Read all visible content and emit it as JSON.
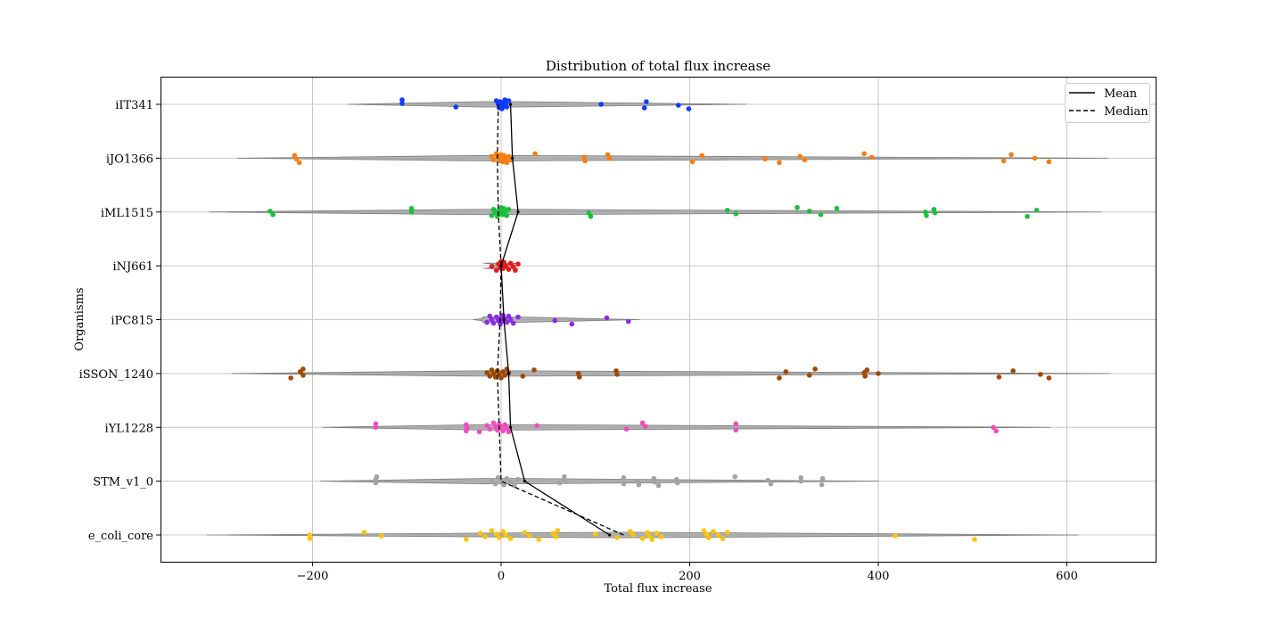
{
  "chart_data": {
    "type": "scatter",
    "title": "Distribution of total flux increase",
    "xlabel": "Total flux increase",
    "ylabel": "Organisms",
    "xlim": [
      -270,
      1780
    ],
    "x_ticks": [
      -200,
      0,
      200,
      400,
      600
    ],
    "x_tick_labels": [
      "−200",
      "0",
      "200",
      "400",
      "600"
    ],
    "grid": true,
    "legend_position": "top-right",
    "legend": [
      {
        "label": "Mean",
        "style": "solid"
      },
      {
        "label": "Median",
        "style": "dashed"
      }
    ],
    "categories": [
      "iIT341",
      "iJO1366",
      "iML1515",
      "iNJ661",
      "iPC815",
      "iSSON_1240",
      "iYL1228",
      "STM_v1_0",
      "e_coli_core"
    ],
    "mean": [
      10,
      12,
      18,
      0,
      3,
      8,
      10,
      25,
      115
    ],
    "median": [
      -3,
      -4,
      -3,
      0,
      -1,
      -4,
      -2,
      0,
      130
    ],
    "violin_range": [
      [
        -163,
        260
      ],
      [
        -280,
        644
      ],
      [
        -310,
        636
      ],
      [
        -8,
        12
      ],
      [
        -30,
        147
      ],
      [
        -286,
        647
      ],
      [
        -190,
        583
      ],
      [
        -192,
        400
      ],
      [
        -312,
        612
      ]
    ],
    "series": [
      {
        "name": "iIT341",
        "color": "#0c3cff",
        "x": [
          -105,
          -105,
          -48,
          -5,
          -3,
          -2,
          -1,
          0,
          1,
          2,
          3,
          4,
          5,
          6,
          8,
          106,
          152,
          154,
          188,
          199
        ]
      },
      {
        "name": "iJO1366",
        "color": "#f67f10",
        "x": [
          -219,
          -217,
          -214,
          -10,
          -8,
          -5,
          -3,
          -1,
          0,
          1,
          2,
          3,
          4,
          6,
          8,
          10,
          36,
          88,
          89,
          113,
          115,
          203,
          213,
          280,
          295,
          317,
          322,
          385,
          393,
          533,
          541,
          566,
          581
        ]
      },
      {
        "name": "iML1515",
        "color": "#1bc03c",
        "x": [
          -245,
          -242,
          -95,
          -95,
          -10,
          -8,
          -6,
          -4,
          -2,
          -1,
          0,
          1,
          2,
          3,
          4,
          6,
          8,
          93,
          95,
          240,
          249,
          314,
          327,
          339,
          356,
          450,
          451,
          459,
          460,
          558,
          568
        ]
      },
      {
        "name": "iNJ661",
        "color": "#e41a1c",
        "x": [
          -10,
          -5,
          -3,
          -1,
          0,
          1,
          2,
          3,
          5,
          8,
          10,
          13,
          15,
          18
        ]
      },
      {
        "name": "iPC815",
        "color": "#8b2be2",
        "x": [
          -15,
          -12,
          -10,
          -8,
          -5,
          -3,
          -1,
          0,
          1,
          2,
          4,
          6,
          8,
          10,
          13,
          18,
          57,
          75,
          112,
          135
        ]
      },
      {
        "name": "iSSON_1240",
        "color": "#9f4800",
        "x": [
          -223,
          -213,
          -210,
          -210,
          -15,
          -12,
          -10,
          -8,
          -6,
          -4,
          -2,
          0,
          2,
          4,
          6,
          8,
          23,
          35,
          82,
          83,
          122,
          123,
          295,
          302,
          327,
          333,
          385,
          386,
          388,
          400,
          528,
          543,
          572,
          581
        ]
      },
      {
        "name": "iYL1228",
        "color": "#f14cc1",
        "x": [
          -133,
          -133,
          -37,
          -37,
          -36,
          -23,
          -15,
          -12,
          -8,
          -6,
          -4,
          -2,
          0,
          2,
          4,
          6,
          8,
          38,
          133,
          150,
          153,
          249,
          249,
          522,
          525
        ]
      },
      {
        "name": "STM_v1_0",
        "color": "#a3a3a3",
        "x": [
          -133,
          -133,
          -132,
          -10,
          -6,
          -3,
          0,
          3,
          6,
          10,
          14,
          18,
          62,
          67,
          68,
          130,
          130,
          145,
          146,
          162,
          163,
          167,
          186,
          187,
          248,
          283,
          286,
          318,
          318,
          340,
          341
        ]
      },
      {
        "name": "e_coli_core",
        "color": "#ffc400",
        "x": [
          -203,
          -203,
          -145,
          -127,
          -37,
          -22,
          -17,
          -10,
          -5,
          -2,
          2,
          5,
          10,
          25,
          30,
          40,
          55,
          58,
          60,
          100,
          123,
          137,
          140,
          150,
          155,
          157,
          160,
          165,
          170,
          215,
          218,
          220,
          225,
          230,
          235,
          240,
          418,
          502
        ]
      }
    ]
  }
}
